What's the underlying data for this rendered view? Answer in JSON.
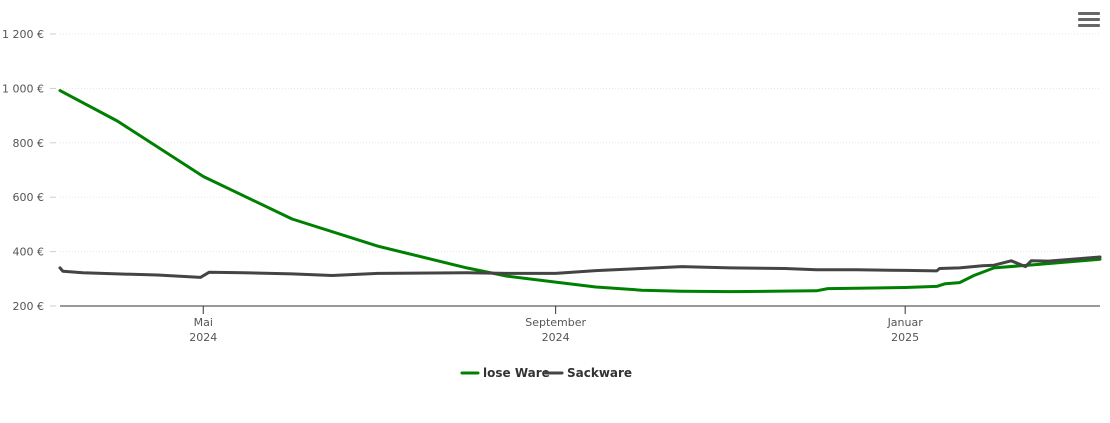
{
  "chart_data": {
    "type": "line",
    "title": "",
    "xlabel": "",
    "ylabel": "",
    "ylim": [
      200,
      1200
    ],
    "yticks": [
      {
        "value": 200,
        "label": "200 €"
      },
      {
        "value": 400,
        "label": "400 €"
      },
      {
        "value": 600,
        "label": "600 €"
      },
      {
        "value": 800,
        "label": "800 €"
      },
      {
        "value": 1000,
        "label": "1 000 €"
      },
      {
        "value": 1200,
        "label": "1 200 €"
      }
    ],
    "xlim": [
      "2024-03-12",
      "2025-03-10"
    ],
    "xticks": [
      {
        "date": "2024-05-01",
        "label": "Mai",
        "sub": "2024"
      },
      {
        "date": "2024-09-01",
        "label": "September",
        "sub": "2024"
      },
      {
        "date": "2025-01-01",
        "label": "Januar",
        "sub": "2025"
      }
    ],
    "grid": true,
    "legend_position": "bottom-center",
    "series": [
      {
        "name": "lose Ware",
        "color": "#008000",
        "points": [
          [
            "2024-03-12",
            992
          ],
          [
            "2024-04-01",
            880
          ],
          [
            "2024-05-01",
            676
          ],
          [
            "2024-06-01",
            520
          ],
          [
            "2024-07-01",
            420
          ],
          [
            "2024-08-01",
            340
          ],
          [
            "2024-08-15",
            310
          ],
          [
            "2024-09-01",
            288
          ],
          [
            "2024-09-15",
            270
          ],
          [
            "2024-10-01",
            258
          ],
          [
            "2024-10-15",
            254
          ],
          [
            "2024-11-01",
            253
          ],
          [
            "2024-11-15",
            254
          ],
          [
            "2024-12-01",
            256
          ],
          [
            "2024-12-05",
            264
          ],
          [
            "2024-12-15",
            265
          ],
          [
            "2025-01-01",
            268
          ],
          [
            "2025-01-12",
            272
          ],
          [
            "2025-01-15",
            282
          ],
          [
            "2025-01-20",
            286
          ],
          [
            "2025-01-25",
            312
          ],
          [
            "2025-02-01",
            340
          ],
          [
            "2025-02-15",
            352
          ],
          [
            "2025-03-10",
            372
          ]
        ]
      },
      {
        "name": "Sackware",
        "color": "#444444",
        "points": [
          [
            "2024-03-12",
            340
          ],
          [
            "2024-03-13",
            328
          ],
          [
            "2024-03-20",
            322
          ],
          [
            "2024-04-01",
            318
          ],
          [
            "2024-04-15",
            314
          ],
          [
            "2024-04-30",
            305
          ],
          [
            "2024-05-03",
            324
          ],
          [
            "2024-05-15",
            322
          ],
          [
            "2024-06-01",
            318
          ],
          [
            "2024-06-15",
            312
          ],
          [
            "2024-07-01",
            320
          ],
          [
            "2024-08-01",
            322
          ],
          [
            "2024-08-15",
            320
          ],
          [
            "2024-09-01",
            320
          ],
          [
            "2024-09-15",
            330
          ],
          [
            "2024-10-01",
            338
          ],
          [
            "2024-10-15",
            345
          ],
          [
            "2024-11-01",
            340
          ],
          [
            "2024-11-20",
            338
          ],
          [
            "2024-12-01",
            333
          ],
          [
            "2024-12-15",
            333
          ],
          [
            "2025-01-01",
            331
          ],
          [
            "2025-01-12",
            329
          ],
          [
            "2025-01-13",
            338
          ],
          [
            "2025-01-20",
            340
          ],
          [
            "2025-01-28",
            348
          ],
          [
            "2025-02-01",
            350
          ],
          [
            "2025-02-07",
            366
          ],
          [
            "2025-02-12",
            345
          ],
          [
            "2025-02-14",
            366
          ],
          [
            "2025-02-20",
            365
          ],
          [
            "2025-03-10",
            380
          ]
        ]
      }
    ]
  }
}
